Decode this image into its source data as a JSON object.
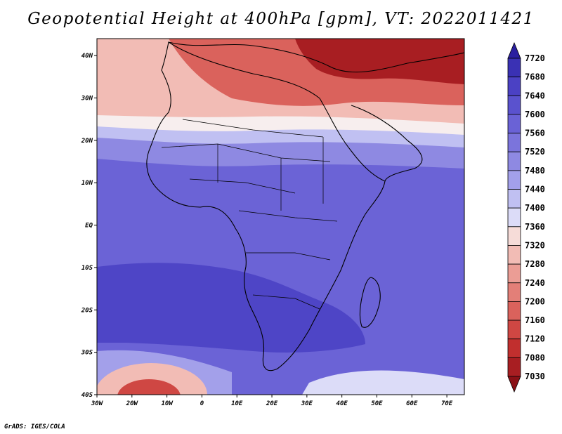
{
  "title": "Geopotential Height at 400hPa [gpm], VT: 2022011421",
  "credit": "GrADS: IGES/COLA",
  "axes": {
    "lat_ticks": [
      {
        "value": 40,
        "label": "40N"
      },
      {
        "value": 30,
        "label": "30N"
      },
      {
        "value": 20,
        "label": "20N"
      },
      {
        "value": 10,
        "label": "10N"
      },
      {
        "value": 0,
        "label": "EQ"
      },
      {
        "value": -10,
        "label": "10S"
      },
      {
        "value": -20,
        "label": "20S"
      },
      {
        "value": -30,
        "label": "30S"
      },
      {
        "value": -40,
        "label": "40S"
      }
    ],
    "lon_ticks": [
      {
        "value": -30,
        "label": "30W"
      },
      {
        "value": -20,
        "label": "20W"
      },
      {
        "value": -10,
        "label": "10W"
      },
      {
        "value": 0,
        "label": "0"
      },
      {
        "value": 10,
        "label": "10E"
      },
      {
        "value": 20,
        "label": "20E"
      },
      {
        "value": 30,
        "label": "30E"
      },
      {
        "value": 40,
        "label": "40E"
      },
      {
        "value": 50,
        "label": "50E"
      },
      {
        "value": 60,
        "label": "60E"
      },
      {
        "value": 70,
        "label": "70E"
      }
    ],
    "lon_range": [
      -30,
      75
    ],
    "lat_range": [
      -40,
      44
    ]
  },
  "colorbar": {
    "levels": [
      "7720",
      "7680",
      "7640",
      "7600",
      "7560",
      "7520",
      "7480",
      "7440",
      "7400",
      "7360",
      "7320",
      "7280",
      "7240",
      "7200",
      "7160",
      "7120",
      "7080",
      "7030"
    ],
    "colors": [
      "#2a1fa0",
      "#3a31b4",
      "#4b41c4",
      "#5a52ce",
      "#6a62d6",
      "#7b74dc",
      "#8e89e2",
      "#a3a0ea",
      "#c0c0f2",
      "#dcdcf8",
      "#f6dcd8",
      "#f2bcb5",
      "#eb9d95",
      "#e37f78",
      "#da625c",
      "#cf4743",
      "#c12f2e",
      "#a81e22",
      "#8a1016"
    ]
  },
  "field_colors": {
    "ocean_base": "#6b63d6",
    "deep_south": "#4b41c4",
    "subtropics_blue": "#8e89e2",
    "pale_blue": "#c0c0f2",
    "white_band": "#f7eeee",
    "pink": "#f2bcb5",
    "red": "#da625c",
    "dark_red": "#a81e22",
    "southern_high_pale": "#dcdcf8",
    "southern_low_red": "#cf4743"
  }
}
